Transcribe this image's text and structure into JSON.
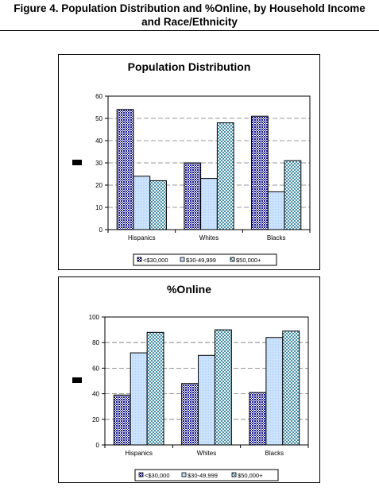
{
  "figure": {
    "title_line1": "Figure 4. Population Distribution and %Online, by Household Income",
    "title_line2": "and Race/Ethnicity"
  },
  "colors": {
    "bar_fill_light": "#cde4ff",
    "bar_pattern_dark": "#1a1a8c",
    "bar_pattern_teal": "#1f6f8b",
    "gridline": "#777777"
  },
  "chart_data": [
    {
      "type": "bar",
      "title": "Population Distribution",
      "categories": [
        "Hispanics",
        "Whites",
        "Blacks"
      ],
      "series": [
        {
          "name": "<$30,000",
          "values": [
            54,
            30,
            51
          ]
        },
        {
          "name": "$30-49,999",
          "values": [
            24,
            23,
            17
          ]
        },
        {
          "name": "$50,000+",
          "values": [
            22,
            48,
            31
          ]
        }
      ],
      "ylim": [
        0,
        60
      ],
      "yticks": [
        0,
        10,
        20,
        30,
        40,
        50,
        60
      ],
      "grid": true,
      "legend": "bottom"
    },
    {
      "type": "bar",
      "title": "%Online",
      "categories": [
        "Hispanics",
        "Whites",
        "Blacks"
      ],
      "series": [
        {
          "name": "<$30,000",
          "values": [
            39,
            48,
            41
          ]
        },
        {
          "name": "$30-49,999",
          "values": [
            72,
            70,
            84
          ]
        },
        {
          "name": "$50,000+",
          "values": [
            88,
            90,
            89
          ]
        }
      ],
      "ylim": [
        0,
        100
      ],
      "yticks": [
        0,
        20,
        40,
        60,
        80,
        100
      ],
      "grid": true,
      "legend": "bottom"
    }
  ]
}
